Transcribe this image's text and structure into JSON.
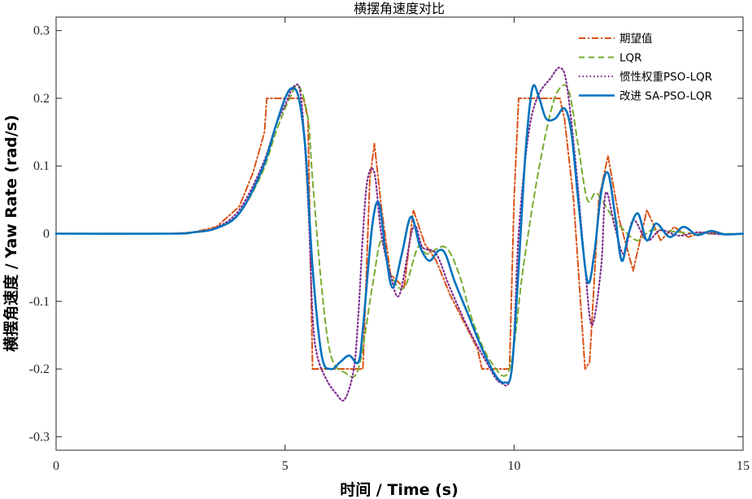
{
  "chart_data": {
    "type": "line",
    "title": "横摆角速度对比",
    "xlabel": "时间 / Time (s)",
    "ylabel": "横摆角速度 / Yaw Rate (rad/s)",
    "xlim": [
      0,
      15
    ],
    "ylim": [
      -0.32,
      0.32
    ],
    "xticks": [
      0,
      5,
      10,
      15
    ],
    "xtick_labels": [
      "0",
      "5",
      "10",
      "15"
    ],
    "yticks": [
      -0.3,
      -0.2,
      -0.1,
      0,
      0.1,
      0.2,
      0.3
    ],
    "ytick_labels": [
      "-0.3",
      "-0.2",
      "-0.1",
      "0",
      "0.1",
      "0.2",
      "0.3"
    ],
    "grid": false,
    "legend_position": "top-right",
    "series": [
      {
        "name": "期望值",
        "color": "#D95319",
        "style": "dashdot",
        "x": [
          0,
          2.5,
          3,
          3.5,
          4,
          4.3,
          4.55,
          4.6,
          5.4,
          5.5,
          5.6,
          6.7,
          6.85,
          6.95,
          7.1,
          7.3,
          7.6,
          7.8,
          8.05,
          8.3,
          8.6,
          8.9,
          9.2,
          9.3,
          9.9,
          10.0,
          10.1,
          11.0,
          11.1,
          11.3,
          11.55,
          11.65,
          11.85,
          12.05,
          12.3,
          12.6,
          12.9,
          13.2,
          13.5,
          13.8,
          14.2,
          14.6,
          15
        ],
        "y": [
          0,
          0,
          0.002,
          0.01,
          0.04,
          0.09,
          0.15,
          0.2,
          0.2,
          0.17,
          -0.2,
          -0.2,
          0.08,
          0.133,
          0.04,
          -0.06,
          -0.08,
          0.035,
          -0.015,
          -0.04,
          -0.09,
          -0.13,
          -0.17,
          -0.2,
          -0.2,
          0.05,
          0.2,
          0.2,
          0.17,
          0.05,
          -0.2,
          -0.19,
          0.05,
          0.115,
          0.02,
          -0.055,
          0.035,
          -0.01,
          0.01,
          -0.005,
          0.003,
          -0.001,
          0
        ]
      },
      {
        "name": "LQR",
        "color": "#77AC30",
        "style": "dashed",
        "x": [
          0,
          2.5,
          3,
          3.5,
          4,
          4.5,
          4.8,
          5.1,
          5.3,
          5.5,
          5.6,
          5.8,
          6.0,
          6.3,
          6.6,
          6.9,
          7.1,
          7.3,
          7.6,
          7.9,
          8.1,
          8.5,
          8.8,
          9.1,
          9.5,
          9.9,
          10.2,
          10.5,
          10.8,
          11.0,
          11.2,
          11.4,
          11.6,
          11.8,
          12.1,
          12.4,
          12.7,
          13.0,
          13.5,
          14.0,
          15
        ],
        "y": [
          0,
          0,
          0.002,
          0.008,
          0.03,
          0.09,
          0.15,
          0.2,
          0.218,
          0.17,
          0.08,
          -0.08,
          -0.18,
          -0.205,
          -0.2,
          -0.08,
          -0.01,
          -0.06,
          -0.08,
          -0.02,
          -0.03,
          -0.02,
          -0.06,
          -0.13,
          -0.19,
          -0.2,
          -0.05,
          0.08,
          0.18,
          0.215,
          0.21,
          0.13,
          0.05,
          0.06,
          0.03,
          0.005,
          -0.01,
          0.005,
          0.003,
          0,
          0
        ]
      },
      {
        "name": "惯性权重PSO-LQR",
        "color": "#7E2F8E",
        "style": "dotted",
        "x": [
          0,
          2.5,
          3,
          3.5,
          4,
          4.5,
          4.8,
          5.0,
          5.2,
          5.35,
          5.5,
          5.6,
          5.7,
          5.9,
          6.1,
          6.3,
          6.5,
          6.6,
          6.7,
          6.8,
          6.95,
          7.1,
          7.3,
          7.5,
          7.8,
          8.0,
          8.3,
          8.6,
          9.0,
          9.4,
          9.7,
          9.95,
          10.1,
          10.3,
          10.5,
          10.8,
          11.0,
          11.15,
          11.35,
          11.55,
          11.7,
          11.9,
          12.0,
          12.2,
          12.4,
          12.6,
          12.9,
          13.2,
          13.6,
          14.0,
          14.5,
          15
        ],
        "y": [
          0,
          0,
          0.002,
          0.009,
          0.035,
          0.1,
          0.16,
          0.19,
          0.218,
          0.2,
          0.05,
          -0.12,
          -0.18,
          -0.215,
          -0.235,
          -0.245,
          -0.2,
          -0.12,
          0.0,
          0.08,
          0.09,
          0.0,
          -0.06,
          -0.09,
          0.01,
          -0.02,
          -0.03,
          -0.08,
          -0.14,
          -0.19,
          -0.22,
          -0.2,
          0.0,
          0.14,
          0.2,
          0.23,
          0.245,
          0.22,
          0.1,
          -0.05,
          -0.135,
          -0.05,
          0.06,
          0.01,
          -0.03,
          0.02,
          -0.01,
          0.005,
          -0.003,
          0.002,
          -0.001,
          0
        ]
      },
      {
        "name": "改进 SA-PSO-LQR",
        "color": "#0072BD",
        "style": "solid",
        "x": [
          0,
          2.5,
          3,
          3.5,
          4,
          4.5,
          4.8,
          5.0,
          5.15,
          5.3,
          5.45,
          5.6,
          5.8,
          6.0,
          6.2,
          6.4,
          6.6,
          6.7,
          6.9,
          7.05,
          7.2,
          7.35,
          7.55,
          7.75,
          7.95,
          8.15,
          8.35,
          8.5,
          8.7,
          9.0,
          9.3,
          9.6,
          9.8,
          9.95,
          10.1,
          10.25,
          10.4,
          10.55,
          10.7,
          10.9,
          11.1,
          11.25,
          11.4,
          11.6,
          11.75,
          11.9,
          12.05,
          12.2,
          12.35,
          12.5,
          12.7,
          12.9,
          13.1,
          13.4,
          13.7,
          14.0,
          14.3,
          14.6,
          15
        ],
        "y": [
          0,
          0,
          0.002,
          0.008,
          0.03,
          0.095,
          0.16,
          0.2,
          0.215,
          0.2,
          0.12,
          -0.05,
          -0.18,
          -0.2,
          -0.19,
          -0.18,
          -0.19,
          -0.14,
          0.01,
          0.045,
          -0.03,
          -0.08,
          -0.03,
          0.025,
          -0.02,
          -0.04,
          -0.025,
          -0.03,
          -0.07,
          -0.12,
          -0.17,
          -0.21,
          -0.22,
          -0.2,
          -0.05,
          0.12,
          0.215,
          0.2,
          0.17,
          0.17,
          0.185,
          0.15,
          0.05,
          -0.07,
          -0.03,
          0.06,
          0.09,
          0.03,
          -0.04,
          0.0,
          0.03,
          -0.01,
          0.015,
          -0.005,
          0.01,
          -0.002,
          0.004,
          -0.001,
          0
        ]
      }
    ]
  }
}
